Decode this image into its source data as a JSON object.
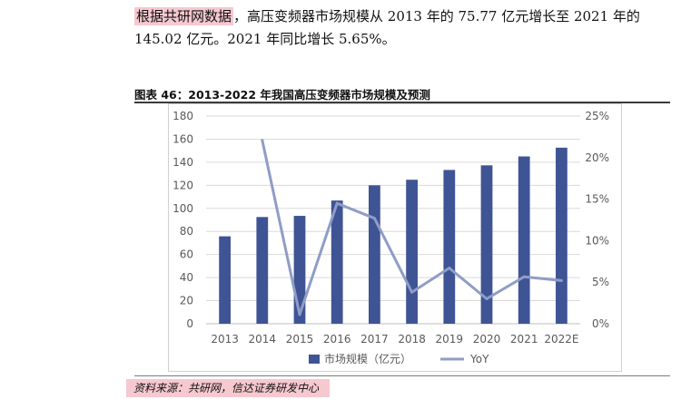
{
  "intro": {
    "highlight": "根据共研网数据",
    "text": "，高压变频器市场规模从 2013 年的 75.77 亿元增长至 2021 年的 145.02 亿元。2021 年同比增长 5.65%。"
  },
  "figure_title": "图表 46：2013-2022 年我国高压变频器市场规模及预测",
  "source": "资料来源：共研网，信达证券研发中心",
  "colors": {
    "bar": "#3e5494",
    "line": "#8f9dc6",
    "axis_text": "#595959",
    "grid": "#d9d9d9"
  },
  "chart_data": {
    "type": "bar",
    "categories": [
      "2013",
      "2014",
      "2015",
      "2016",
      "2017",
      "2018",
      "2019",
      "2020",
      "2021",
      "2022E"
    ],
    "series": [
      {
        "name": "市场规模（亿元）",
        "type": "bar",
        "axis": "left",
        "values": [
          75.77,
          92.5,
          93.5,
          106.8,
          120.0,
          124.8,
          133.3,
          137.3,
          145.02,
          152.6
        ]
      },
      {
        "name": "YoY",
        "type": "line",
        "axis": "right",
        "values": [
          null,
          22.1,
          1.1,
          14.5,
          12.7,
          3.8,
          6.7,
          3.0,
          5.65,
          5.2
        ]
      }
    ],
    "yleft": {
      "min": 0,
      "max": 180,
      "ticks": [
        "0",
        "20",
        "40",
        "60",
        "80",
        "100",
        "120",
        "140",
        "160",
        "180"
      ]
    },
    "yright": {
      "min": 0,
      "max": 25,
      "ticks": [
        "0%",
        "5%",
        "10%",
        "15%",
        "20%",
        "25%"
      ]
    },
    "grid": true,
    "legend_position": "bottom"
  }
}
